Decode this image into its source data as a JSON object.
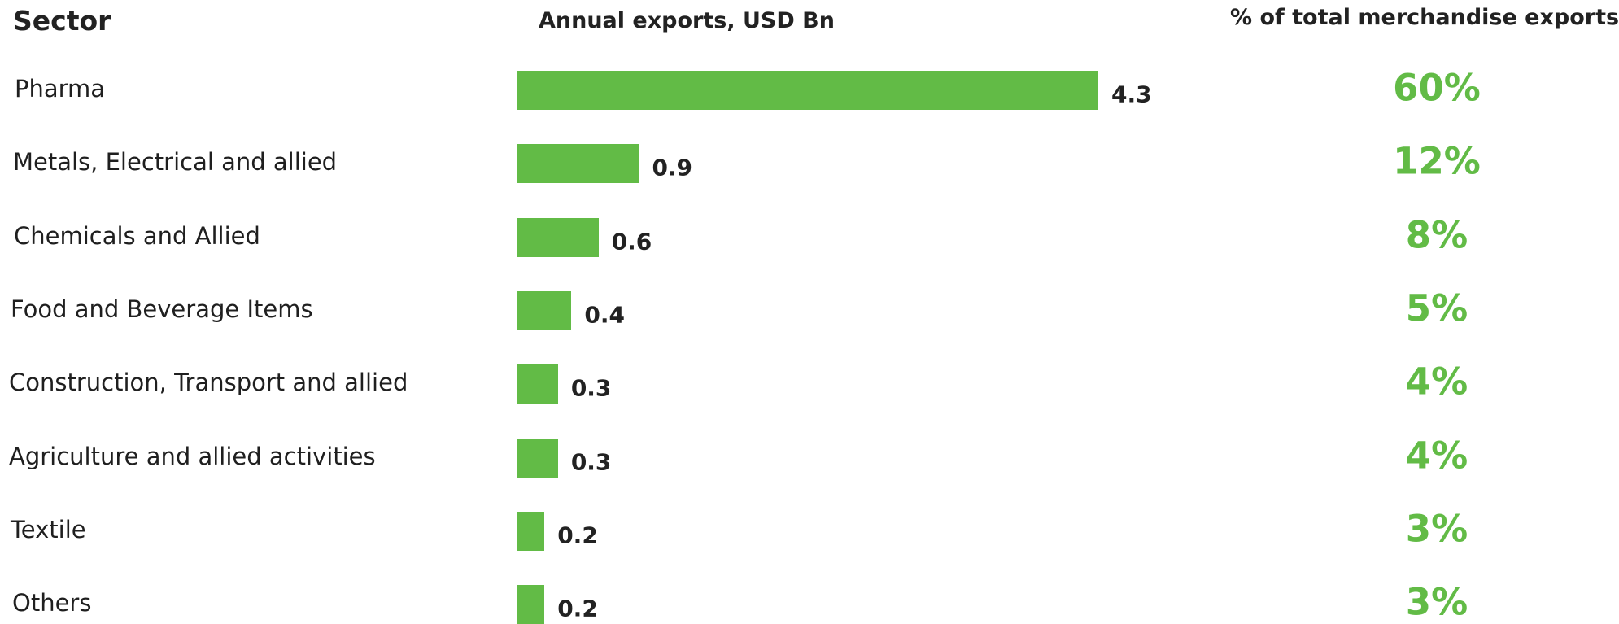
{
  "headers": {
    "sector": "Sector",
    "exports": "Annual exports, USD Bn",
    "share": "% of total  merchandise exports"
  },
  "colors": {
    "bar": "#62bb46",
    "share_text": "#62bb46",
    "text": "#222222"
  },
  "chart_data": {
    "type": "bar",
    "orientation": "horizontal",
    "title": "",
    "xlabel": "Annual exports, USD Bn",
    "ylabel": "Sector",
    "xlim": [
      0,
      4.3
    ],
    "grid": false,
    "categories": [
      "Pharma",
      "Metals, Electrical and allied",
      "Chemicals and Allied",
      "Food and Beverage Items",
      "Construction, Transport and allied",
      "Agriculture and allied activities",
      "Textile",
      "Others"
    ],
    "values": [
      4.3,
      0.9,
      0.6,
      0.4,
      0.3,
      0.3,
      0.2,
      0.2
    ],
    "value_labels": [
      "4.3",
      "0.9",
      "0.6",
      "0.4",
      "0.3",
      "0.3",
      "0.2",
      "0.2"
    ],
    "share_of_total": [
      "60%",
      "12%",
      "8%",
      "5%",
      "4%",
      "4%",
      "3%",
      "3%"
    ]
  }
}
